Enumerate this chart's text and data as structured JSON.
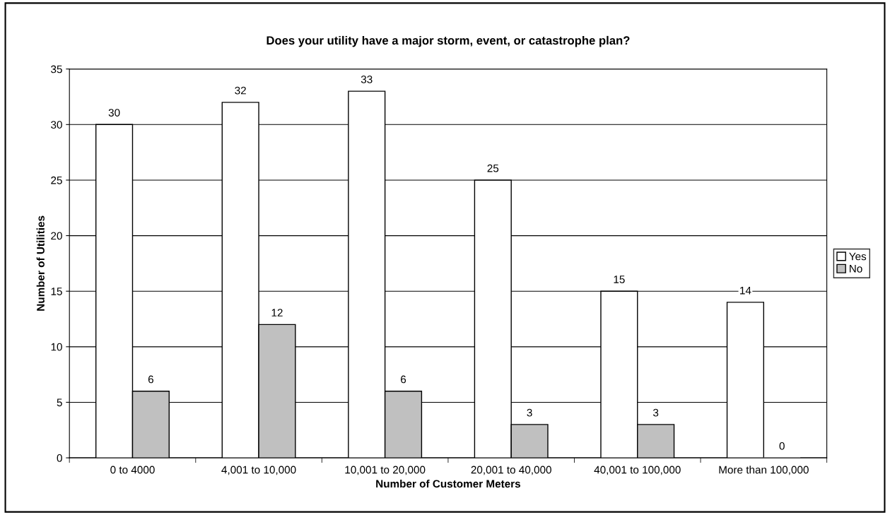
{
  "chart_data": {
    "type": "bar",
    "title": "Does your utility have a major storm, event, or catastrophe plan?",
    "xlabel": "Number of Customer Meters",
    "ylabel": "Number of Utilities",
    "categories": [
      "0 to 4000",
      "4,001 to 10,000",
      "10,001 to 20,000",
      "20,001 to 40,000",
      "40,001 to 100,000",
      "More than 100,000"
    ],
    "series": [
      {
        "name": "Yes",
        "color": "#ffffff",
        "values": [
          30,
          32,
          33,
          25,
          15,
          14
        ]
      },
      {
        "name": "No",
        "color": "#c0c0c0",
        "values": [
          6,
          12,
          6,
          3,
          3,
          0
        ]
      }
    ],
    "ylim": [
      0,
      35
    ],
    "yticks": [
      0,
      5,
      10,
      15,
      20,
      25,
      30,
      35
    ],
    "grid": "y",
    "legend": "right",
    "data_labels": true
  }
}
